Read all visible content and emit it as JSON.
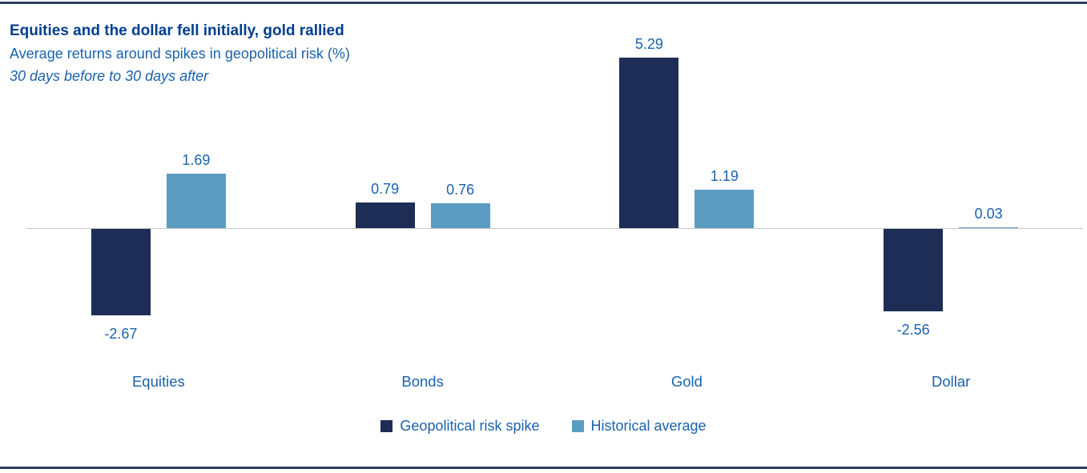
{
  "header": {
    "title": "Equities and the dollar fell initially, gold rallied",
    "subtitle": "Average returns around spikes in geopolitical risk (%)",
    "note": "30 days before to 30 days after"
  },
  "chart_data": {
    "type": "bar",
    "title": "Equities and the dollar fell initially, gold rallied",
    "subtitle": "Average returns around spikes in geopolitical risk (%)",
    "note": "30 days before to 30 days after",
    "categories": [
      "Equities",
      "Bonds",
      "Gold",
      "Dollar"
    ],
    "series": [
      {
        "name": "Geopolitical risk spike",
        "color": "#1d2d56",
        "values": [
          -2.67,
          0.79,
          5.29,
          -2.56
        ]
      },
      {
        "name": "Historical average",
        "color": "#5b9cc3",
        "values": [
          1.69,
          0.76,
          1.19,
          0.03
        ]
      }
    ],
    "value_labels": true,
    "grid": false,
    "baseline": 0,
    "ylim": [
      -3.2,
      5.8
    ],
    "legend_position": "bottom-center"
  },
  "colors": {
    "series_dark": "#1d2d56",
    "series_light": "#5b9cc3",
    "title_text": "#013e8f",
    "label_text": "#1a62ad",
    "zero_line": "#c9c9c9",
    "rule": "#2e3c60",
    "background": "#ffffff"
  }
}
